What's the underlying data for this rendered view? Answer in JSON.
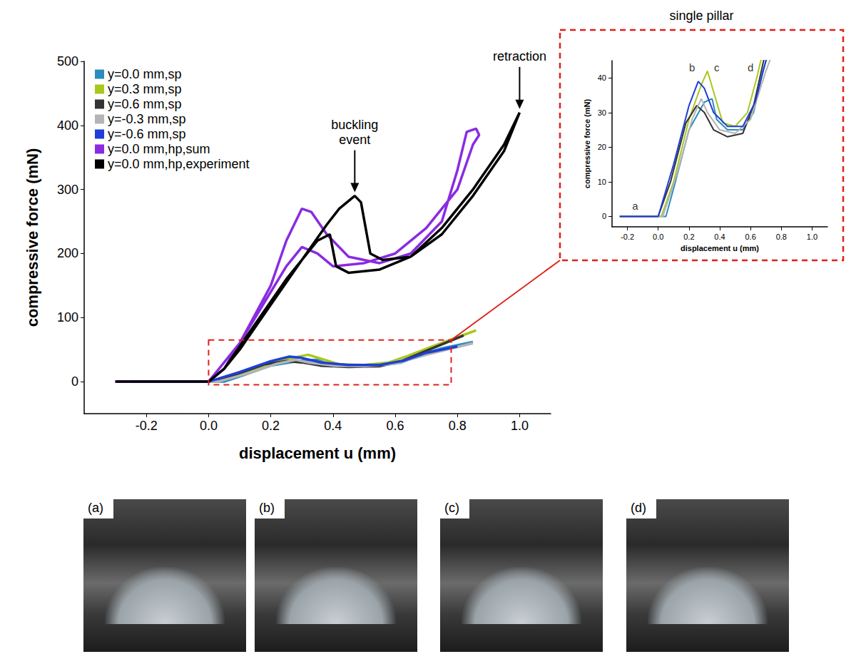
{
  "chart_data": [
    {
      "type": "line",
      "x_label": "displacement u (mm)",
      "y_label": "compressive force (mN)",
      "xlim": [
        -0.4,
        1.1
      ],
      "xticks": [
        -0.2,
        {
          "value": 0,
          "label": "0.0"
        },
        0.2,
        0.4,
        0.6,
        0.8,
        {
          "value": 1,
          "label": "1.0"
        }
      ],
      "ylim": [
        -50,
        500
      ],
      "yticks": [
        0,
        100,
        200,
        300,
        400,
        500
      ],
      "grid": false,
      "legend": "top-left",
      "series": [
        {
          "name": "y=0.0 mm,sp",
          "color": "#2b8cbe",
          "x": [
            -0.25,
            0.0,
            0.05,
            0.1,
            0.2,
            0.3,
            0.35,
            0.38,
            0.45,
            0.55,
            0.62,
            0.68,
            0.75,
            0.85
          ],
          "values": [
            0,
            0,
            0,
            8,
            25,
            33,
            34,
            28,
            25,
            25,
            30,
            42,
            52,
            62
          ]
        },
        {
          "name": "y=0.3 mm,sp",
          "color": "#a8c81e",
          "x": [
            -0.25,
            0.02,
            0.1,
            0.2,
            0.28,
            0.32,
            0.36,
            0.42,
            0.5,
            0.58,
            0.64,
            0.72,
            0.86
          ],
          "values": [
            0,
            0,
            10,
            28,
            38,
            42,
            36,
            27,
            26,
            30,
            40,
            55,
            80
          ]
        },
        {
          "name": "y=0.6 mm,sp",
          "color": "#333333",
          "x": [
            -0.25,
            0.0,
            0.08,
            0.18,
            0.25,
            0.3,
            0.36,
            0.45,
            0.55,
            0.62,
            0.7,
            0.82
          ],
          "values": [
            0,
            0,
            10,
            27,
            32,
            30,
            25,
            23,
            24,
            32,
            48,
            72
          ]
        },
        {
          "name": "y=-0.3 mm,sp",
          "color": "#b4b4b4",
          "x": [
            -0.25,
            0.03,
            0.12,
            0.22,
            0.28,
            0.32,
            0.4,
            0.5,
            0.6,
            0.7,
            0.85
          ],
          "values": [
            0,
            0,
            12,
            28,
            34,
            30,
            25,
            24,
            28,
            42,
            60
          ]
        },
        {
          "name": "y=-0.6 mm,sp",
          "color": "#1f3fd6",
          "x": [
            -0.25,
            0.0,
            0.1,
            0.2,
            0.26,
            0.3,
            0.36,
            0.45,
            0.55,
            0.63,
            0.7,
            0.8
          ],
          "values": [
            0,
            0,
            15,
            32,
            39,
            37,
            30,
            26,
            26,
            33,
            45,
            55
          ]
        },
        {
          "name": "y=0.0 mm,hp,sum",
          "color": "#8a2be2",
          "x": [
            -0.3,
            -0.1,
            0.0,
            0.1,
            0.2,
            0.25,
            0.3,
            0.33,
            0.38,
            0.45,
            0.55,
            0.65,
            0.75,
            0.8,
            0.83,
            0.86,
            0.87,
            0.85,
            0.8,
            0.7,
            0.6,
            0.5,
            0.4,
            0.35,
            0.3,
            0.25,
            0.15,
            0.05,
            0.0
          ],
          "values": [
            0,
            0,
            0,
            60,
            150,
            220,
            270,
            265,
            230,
            195,
            185,
            200,
            250,
            330,
            390,
            395,
            385,
            370,
            300,
            240,
            200,
            185,
            180,
            200,
            210,
            180,
            100,
            20,
            0
          ]
        },
        {
          "name": "y=0.0 mm,hp,experiment",
          "color": "#000000",
          "x": [
            -0.3,
            -0.1,
            0.0,
            0.05,
            0.1,
            0.2,
            0.3,
            0.38,
            0.42,
            0.47,
            0.49,
            0.52,
            0.56,
            0.65,
            0.75,
            0.85,
            0.95,
            1.0,
            0.95,
            0.85,
            0.75,
            0.65,
            0.55,
            0.45,
            0.41,
            0.39,
            0.35,
            0.25,
            0.15,
            0.05,
            0.0
          ],
          "values": [
            0,
            0,
            0,
            20,
            50,
            120,
            190,
            245,
            270,
            290,
            280,
            200,
            190,
            195,
            240,
            300,
            370,
            420,
            360,
            290,
            230,
            195,
            175,
            170,
            180,
            230,
            220,
            160,
            90,
            20,
            0
          ]
        }
      ],
      "annotations": [
        {
          "text": "buckling event",
          "x": 0.47,
          "y": 290
        },
        {
          "text": "retraction",
          "x": 1.0,
          "y": 420
        }
      ],
      "zoom_box": {
        "xlim": [
          0.0,
          0.78
        ],
        "ylim": [
          -5,
          65
        ]
      }
    },
    {
      "type": "line",
      "title": "single pillar",
      "x_label": "displacement u (mm)",
      "y_label": "compressive force (mN)",
      "xlim": [
        -0.3,
        1.1
      ],
      "xticks": [
        -0.2,
        {
          "value": 0,
          "label": "0.0"
        },
        0.2,
        0.4,
        0.6,
        0.8,
        {
          "value": 1,
          "label": "1.0"
        }
      ],
      "ylim": [
        -3,
        45
      ],
      "yticks": [
        0,
        10,
        20,
        30,
        40
      ],
      "grid": false,
      "series": [
        "y=0.0 mm,sp",
        "y=0.3 mm,sp",
        "y=0.6 mm,sp",
        "y=-0.3 mm,sp",
        "y=-0.6 mm,sp"
      ],
      "point_labels": [
        {
          "text": "a",
          "x": -0.15,
          "y": 3
        },
        {
          "text": "b",
          "x": 0.22,
          "y": 43
        },
        {
          "text": "c",
          "x": 0.38,
          "y": 43
        },
        {
          "text": "d",
          "x": 0.6,
          "y": 43
        }
      ]
    }
  ],
  "photos": {
    "labels": [
      "(a)",
      "(b)",
      "(c)",
      "(d)"
    ]
  }
}
